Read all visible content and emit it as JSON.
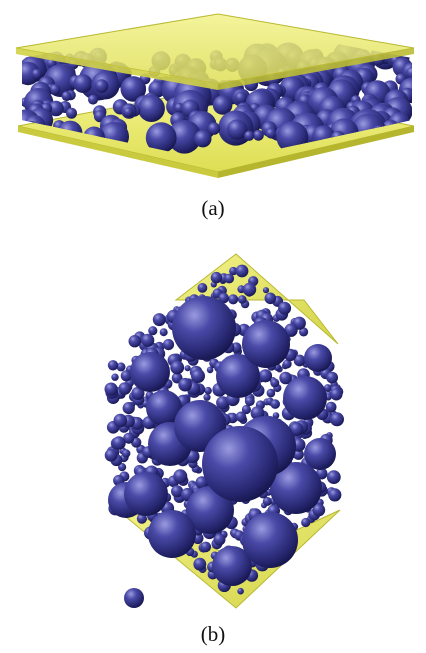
{
  "figure": {
    "panels": [
      {
        "label": "(a)",
        "description_name": "flat-sphere-packing"
      },
      {
        "label": "(b)",
        "description_name": "diamond-sphere-packing"
      }
    ],
    "colors": {
      "plate_yellow": "#e8e86a",
      "plate_edge": "#c9c93a",
      "sphere_dark": "#1e1e6a",
      "sphere_mid": "#3a3a96",
      "sphere_light": "#8d8ddc"
    }
  }
}
